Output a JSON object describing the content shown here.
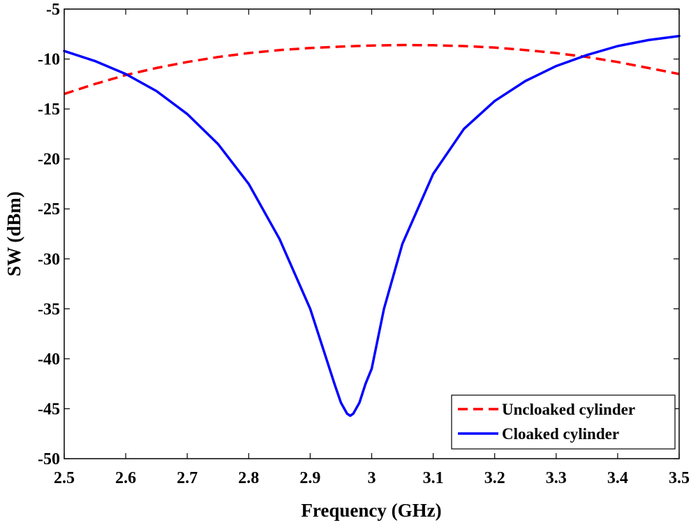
{
  "chart_data": {
    "type": "line",
    "xlabel": "Frequency (GHz)",
    "ylabel": "SW (dBm)",
    "xlim": [
      2.5,
      3.5
    ],
    "ylim": [
      -50,
      -5
    ],
    "x_ticks": [
      "2.5",
      "2.6",
      "2.7",
      "2.8",
      "2.9",
      "3",
      "3.1",
      "3.2",
      "3.3",
      "3.4",
      "3.5"
    ],
    "y_ticks": [
      "-5",
      "-10",
      "-15",
      "-20",
      "-25",
      "-30",
      "-35",
      "-40",
      "-45",
      "-50"
    ],
    "grid": false,
    "legend_position": "bottom-right",
    "series": [
      {
        "name": "Uncloaked cylinder",
        "color": "#ff0000",
        "style": "dashed",
        "x": [
          2.5,
          2.55,
          2.6,
          2.65,
          2.7,
          2.75,
          2.8,
          2.85,
          2.9,
          2.95,
          3.0,
          3.05,
          3.1,
          3.15,
          3.2,
          3.25,
          3.3,
          3.35,
          3.4,
          3.45,
          3.5
        ],
        "y": [
          -13.5,
          -12.5,
          -11.6,
          -10.9,
          -10.3,
          -9.8,
          -9.4,
          -9.1,
          -8.9,
          -8.75,
          -8.65,
          -8.6,
          -8.62,
          -8.7,
          -8.85,
          -9.1,
          -9.4,
          -9.8,
          -10.3,
          -10.9,
          -11.5
        ]
      },
      {
        "name": "Cloaked cylinder",
        "color": "#0000ff",
        "style": "solid",
        "x": [
          2.5,
          2.55,
          2.6,
          2.65,
          2.7,
          2.75,
          2.8,
          2.85,
          2.9,
          2.92,
          2.94,
          2.95,
          2.96,
          2.965,
          2.97,
          2.98,
          2.99,
          3.0,
          3.01,
          3.02,
          3.05,
          3.1,
          3.15,
          3.2,
          3.25,
          3.3,
          3.35,
          3.4,
          3.45,
          3.5
        ],
        "y": [
          -9.2,
          -10.2,
          -11.5,
          -13.2,
          -15.5,
          -18.5,
          -22.5,
          -28.0,
          -35.0,
          -38.8,
          -42.6,
          -44.4,
          -45.5,
          -45.7,
          -45.5,
          -44.4,
          -42.5,
          -41.0,
          -38.0,
          -35.0,
          -28.5,
          -21.5,
          -17.0,
          -14.2,
          -12.2,
          -10.7,
          -9.6,
          -8.7,
          -8.1,
          -7.7
        ]
      }
    ]
  }
}
